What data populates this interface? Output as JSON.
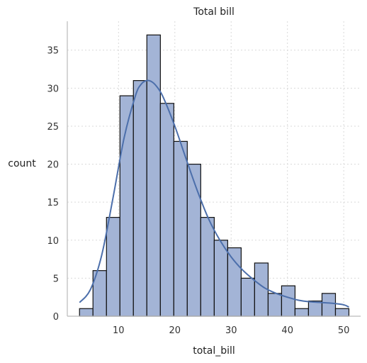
{
  "chart_data": {
    "type": "bar",
    "title": "Total bill",
    "xlabel": "total_bill",
    "ylabel": "count",
    "xlim": [
      0.9,
      53.0
    ],
    "ylim": [
      0,
      38.8
    ],
    "xticks": [
      10,
      20,
      30,
      40,
      50
    ],
    "yticks": [
      0,
      5,
      10,
      15,
      20,
      25,
      30,
      35
    ],
    "grid": true,
    "bin_edges": [
      3.07,
      5.46,
      7.86,
      10.25,
      12.64,
      15.03,
      17.43,
      19.82,
      22.21,
      24.6,
      27.0,
      29.39,
      31.78,
      34.17,
      36.57,
      38.96,
      41.35,
      43.74,
      46.14,
      48.53,
      50.92
    ],
    "counts": [
      1,
      6,
      13,
      29,
      31,
      37,
      28,
      23,
      20,
      13,
      10,
      9,
      5,
      7,
      3,
      4,
      1,
      2,
      3,
      1
    ],
    "kde": {
      "x": [
        3.07,
        5,
        7,
        9,
        11,
        13,
        14,
        15,
        16,
        17,
        18,
        20,
        22,
        24,
        26,
        28,
        30,
        32,
        34,
        36,
        38,
        40,
        42,
        44,
        46,
        48,
        50,
        50.92
      ],
      "y": [
        1.8,
        3.5,
        8.0,
        15.5,
        23.5,
        29.0,
        30.5,
        31.0,
        30.8,
        30.0,
        28.7,
        25.0,
        20.7,
        16.5,
        12.8,
        10.0,
        7.8,
        6.1,
        4.8,
        3.7,
        3.0,
        2.5,
        2.1,
        1.9,
        1.8,
        1.7,
        1.5,
        1.2
      ]
    },
    "colors": {
      "bar_fill": "#a3b4d6",
      "bar_edge": "#111111",
      "kde_line": "#4c6fab",
      "grid": "#d9d9d9",
      "axis": "#bbbbbb"
    }
  }
}
